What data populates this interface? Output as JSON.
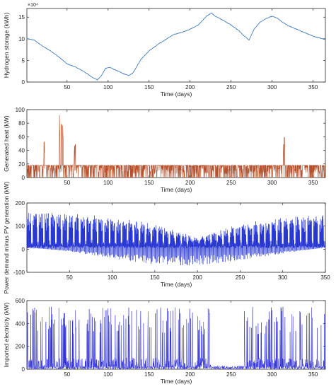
{
  "chart_data": [
    {
      "type": "line",
      "ylabel": "Hydrogen storage (kWh)",
      "xlabel": "Time (days)",
      "xlim": [
        1,
        365
      ],
      "ylim": [
        0,
        17
      ],
      "y_exponent_label": "×10⁴",
      "xticks": [
        50,
        100,
        150,
        200,
        250,
        300,
        350
      ],
      "yticks": [
        0,
        5,
        10,
        15
      ],
      "color": "#2f6fb5",
      "series": [
        {
          "x": [
            1,
            10,
            20,
            30,
            40,
            50,
            60,
            70,
            80,
            87,
            92,
            97,
            102,
            110,
            118,
            125,
            130,
            135,
            140,
            150,
            160,
            170,
            180,
            190,
            200,
            210,
            215,
            220,
            226,
            230,
            240,
            250,
            260,
            265,
            272,
            278,
            285,
            292,
            300,
            306,
            312,
            320,
            330,
            340,
            350,
            358,
            365
          ],
          "y": [
            10,
            9.7,
            8.3,
            7.2,
            5.8,
            4.2,
            3.5,
            2.5,
            1.2,
            0.5,
            1.5,
            3.2,
            3.4,
            2.7,
            2.0,
            1.5,
            2.0,
            3.6,
            5.2,
            7.2,
            8.6,
            9.8,
            11.0,
            11.5,
            12.2,
            13.2,
            14.2,
            15.2,
            16.0,
            15.3,
            14.3,
            13.2,
            11.8,
            10.8,
            9.7,
            12.2,
            13.8,
            14.6,
            15.2,
            14.8,
            13.9,
            13.0,
            12.2,
            11.4,
            10.6,
            10.2,
            9.8
          ]
        }
      ]
    },
    {
      "type": "line",
      "ylabel": "Generated heat (kW)",
      "xlabel": "Time (days)",
      "xlim": [
        1,
        365
      ],
      "ylim": [
        0,
        100
      ],
      "xticks": [
        50,
        100,
        150,
        200,
        250,
        300,
        350
      ],
      "yticks": [
        0,
        20,
        40,
        60,
        80,
        100
      ],
      "color": "#b5502b",
      "base_level_kw": 18,
      "series": [
        {
          "name": "",
          "peaks_x": [
            22,
            41,
            43,
            45,
            59,
            60,
            314,
            315
          ],
          "peaks_y": [
            58,
            95,
            85,
            80,
            55,
            62,
            50,
            61
          ]
        }
      ]
    },
    {
      "type": "line",
      "ylabel": "Power demand minus PV generation (kW)",
      "xlabel": "Time (days)",
      "xlim": [
        0,
        350
      ],
      "ylim": [
        -100,
        200
      ],
      "xticks": [
        50,
        100,
        150,
        200,
        250,
        300,
        350
      ],
      "yticks": [
        -100,
        0,
        100,
        200
      ],
      "color": "#1f2fd0",
      "series": [
        {
          "name": "",
          "upper_envelope_x": [
            0,
            50,
            100,
            150,
            200,
            250,
            300,
            350
          ],
          "upper_envelope_y": [
            160,
            155,
            140,
            110,
            50,
            110,
            140,
            150
          ],
          "lower_envelope_x": [
            0,
            50,
            100,
            150,
            200,
            250,
            300,
            350
          ],
          "lower_envelope_y": [
            10,
            -10,
            -40,
            -70,
            -70,
            -50,
            -20,
            10
          ]
        }
      ]
    },
    {
      "type": "line",
      "ylabel": "Imported electricity (kW)",
      "xlabel": "Time (days)",
      "xlim": [
        1,
        365
      ],
      "ylim": [
        0,
        600
      ],
      "xticks": [
        50,
        100,
        150,
        200,
        250,
        300,
        350
      ],
      "yticks": [
        0,
        200,
        400,
        600
      ],
      "color": "#2a2ad8",
      "series": [
        {
          "name": "",
          "spike_level_kw": 550,
          "quiet_interval_days": [
            225,
            265
          ]
        }
      ]
    }
  ]
}
